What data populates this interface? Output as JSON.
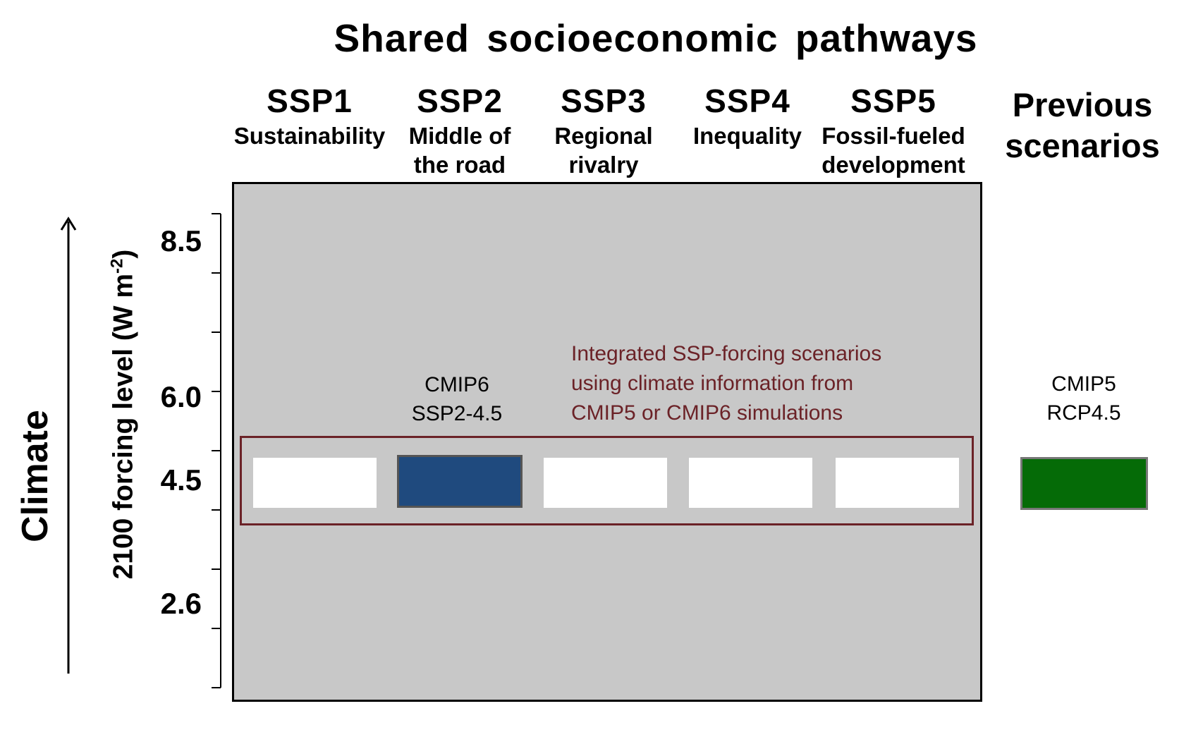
{
  "title": "Shared socioeconomic pathways",
  "ssp_columns": [
    {
      "code": "SSP1",
      "desc_line1": "Sustainability",
      "desc_line2": ""
    },
    {
      "code": "SSP2",
      "desc_line1": "Middle of",
      "desc_line2": "the road"
    },
    {
      "code": "SSP3",
      "desc_line1": "Regional",
      "desc_line2": "rivalry"
    },
    {
      "code": "SSP4",
      "desc_line1": "Inequality",
      "desc_line2": ""
    },
    {
      "code": "SSP5",
      "desc_line1": "Fossil-fueled",
      "desc_line2": "development"
    }
  ],
  "previous": {
    "line1": "Previous",
    "line2": "scenarios"
  },
  "left_axis": {
    "climate_label": "Climate",
    "ylabel_main": "2100 forcing level (W m",
    "ylabel_sup": "-2",
    "ylabel_close": ")",
    "ticks": [
      "8.5",
      "6.0",
      "4.5",
      "2.6"
    ]
  },
  "annotation": {
    "line1": "Integrated SSP-forcing scenarios",
    "line2": "using climate information from",
    "line3": "CMIP5 or CMIP6 simulations"
  },
  "highlight_ssp": {
    "line1": "CMIP6",
    "line2": "SSP2-4.5",
    "forcing": 4.5,
    "pathway": "SSP2"
  },
  "highlight_previous": {
    "line1": "CMIP5",
    "line2": "RCP4.5",
    "forcing": 4.5
  },
  "colors": {
    "panel_bg": "#c8c8c8",
    "band_border": "#6b2227",
    "ssp_highlight": "#1f4a7e",
    "previous_highlight": "#056b07"
  }
}
